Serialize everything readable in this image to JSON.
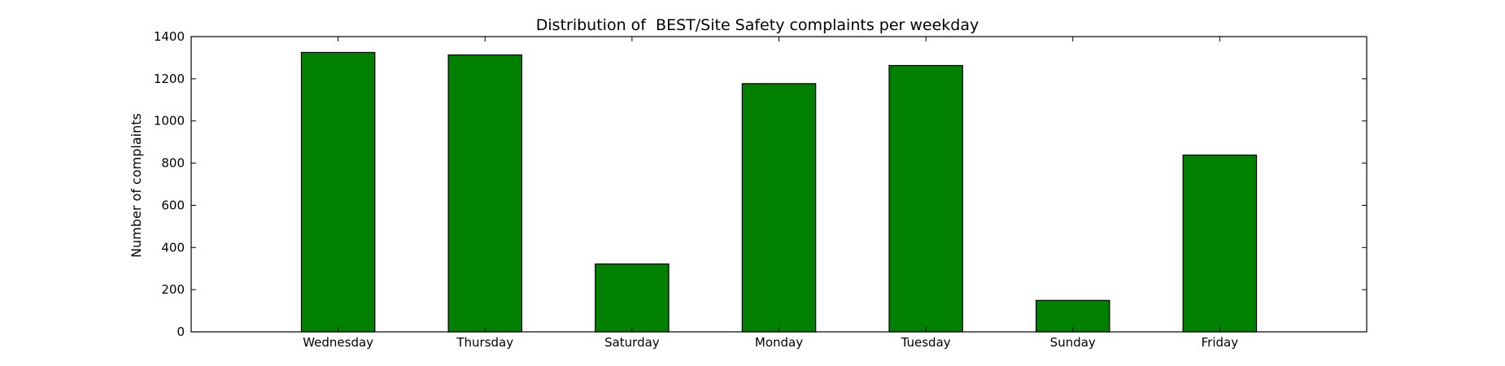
{
  "chart_data": {
    "type": "bar",
    "title": "Distribution of  BEST/Site Safety complaints per weekday",
    "xlabel": "",
    "ylabel": "Number of complaints",
    "categories": [
      "Wednesday",
      "Thursday",
      "Saturday",
      "Monday",
      "Tuesday",
      "Sunday",
      "Friday"
    ],
    "values": [
      1325,
      1313,
      322,
      1177,
      1263,
      149,
      838
    ],
    "ylim": [
      0,
      1400
    ],
    "yticks": [
      0,
      200,
      400,
      600,
      800,
      1000,
      1200,
      1400
    ],
    "xlim": [
      -1,
      7
    ],
    "bar_color": "#008000",
    "edge_color": "#000000",
    "grid": false,
    "legend": "none"
  }
}
